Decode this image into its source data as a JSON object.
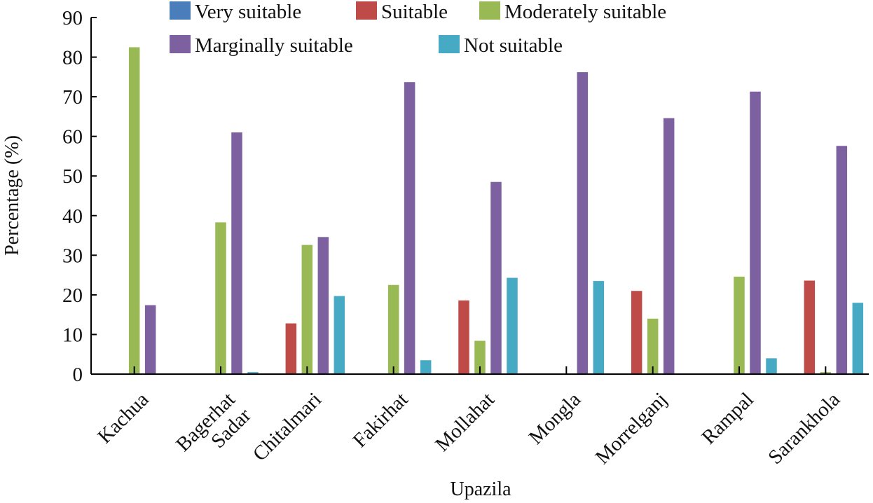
{
  "chart_data": {
    "type": "bar",
    "title": "",
    "xlabel": "Upazila",
    "ylabel": "Percentage (%)",
    "ylim": [
      0,
      90
    ],
    "yticks": [
      0,
      10,
      20,
      30,
      40,
      50,
      60,
      70,
      80,
      90
    ],
    "grid": false,
    "legend_position": "top",
    "categories": [
      [
        "Kachua"
      ],
      [
        "Bagerhat",
        "Sadar"
      ],
      [
        "Chitalmari"
      ],
      [
        "Fakirhat"
      ],
      [
        "Mollahat"
      ],
      [
        "Mongla"
      ],
      [
        "Morrelganj"
      ],
      [
        "Rampal"
      ],
      [
        "Sarankhola"
      ]
    ],
    "series": [
      {
        "name": "Very suitable",
        "color": "#4a7ebb",
        "values": [
          0,
          0,
          0,
          0,
          0,
          0,
          0,
          0,
          0
        ]
      },
      {
        "name": "Suitable",
        "color": "#be4b48",
        "values": [
          0,
          0,
          12.8,
          0,
          18.6,
          0,
          21.0,
          0,
          23.6
        ]
      },
      {
        "name": "Moderately suitable",
        "color": "#98b954",
        "values": [
          82.5,
          38.3,
          32.6,
          22.5,
          8.4,
          0,
          14.0,
          24.6,
          0.5
        ]
      },
      {
        "name": "Marginally suitable",
        "color": "#7d60a0",
        "values": [
          17.4,
          61.0,
          34.6,
          73.7,
          48.5,
          76.2,
          64.6,
          71.3,
          57.6
        ]
      },
      {
        "name": "Not suitable",
        "color": "#46aac5",
        "values": [
          0,
          0.5,
          19.7,
          3.5,
          24.3,
          23.5,
          0,
          4.0,
          18.0
        ]
      }
    ]
  }
}
